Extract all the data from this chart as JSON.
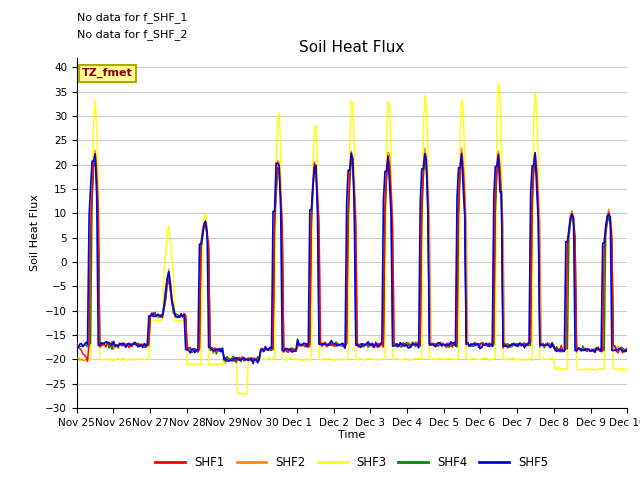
{
  "title": "Soil Heat Flux",
  "ylabel": "Soil Heat Flux",
  "xlabel": "Time",
  "ylim": [
    -30,
    42
  ],
  "yticks": [
    -30,
    -25,
    -20,
    -15,
    -10,
    -5,
    0,
    5,
    10,
    15,
    20,
    25,
    30,
    35,
    40
  ],
  "note1": "No data for f_SHF_1",
  "note2": "No data for f_SHF_2",
  "legend_label": "TZ_fmet",
  "series_colors": {
    "SHF1": "#ff0000",
    "SHF2": "#ff8c00",
    "SHF3": "#ffff00",
    "SHF4": "#008800",
    "SHF5": "#0000ee"
  },
  "xtick_labels": [
    "Nov 25",
    "Nov 26",
    "Nov 27",
    "Nov 28",
    "Nov 29",
    "Nov 30",
    "Dec 1",
    "Dec 2",
    "Dec 3",
    "Dec 4",
    "Dec 5",
    "Dec 6",
    "Dec 7",
    "Dec 8",
    "Dec 9",
    "Dec 10"
  ],
  "background_color": "#ffffff",
  "grid_color": "#cccccc",
  "title_fontsize": 11,
  "axis_fontsize": 8,
  "tick_fontsize": 7.5
}
